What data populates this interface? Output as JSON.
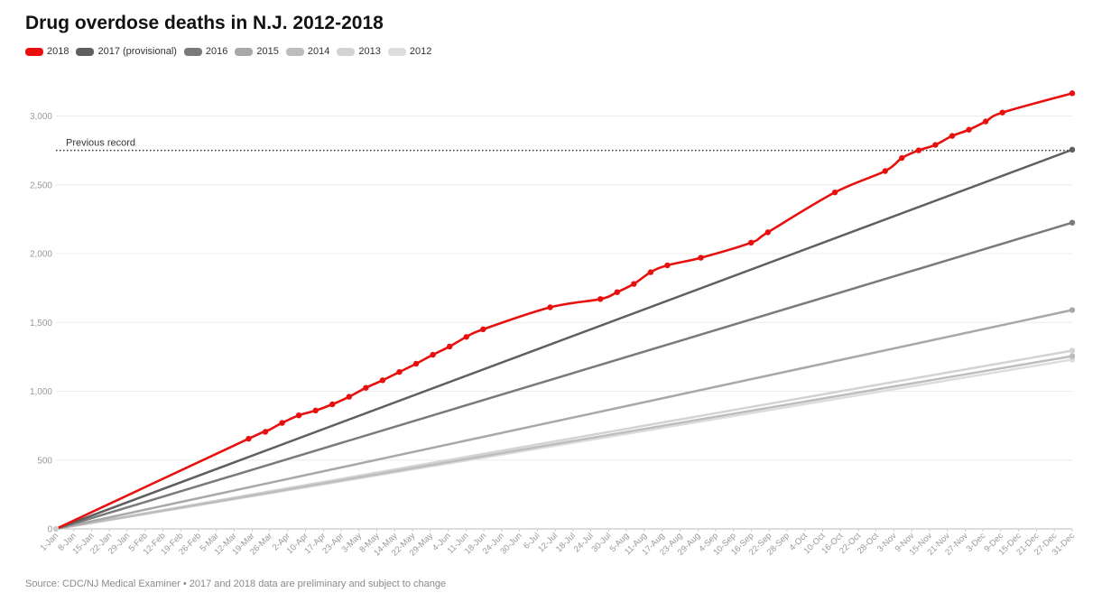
{
  "title": "Drug overdose deaths in N.J. 2012-2018",
  "source": "Source: CDC/NJ Medical Examiner • 2017 and 2018 data are preliminary and subject to change",
  "chart_data": {
    "type": "line",
    "title": "Drug overdose deaths in N.J. 2012-2018",
    "x_ticks": [
      "1-Jan",
      "8-Jan",
      "15-Jan",
      "22-Jan",
      "29-Jan",
      "5-Feb",
      "12-Feb",
      "19-Feb",
      "26-Feb",
      "5-Mar",
      "12-Mar",
      "19-Mar",
      "26-Mar",
      "2-Apr",
      "10-Apr",
      "17-Apr",
      "23-Apr",
      "3-May",
      "8-May",
      "14-May",
      "22-May",
      "29-May",
      "4-Jun",
      "11-Jun",
      "18-Jun",
      "24-Jun",
      "30-Jun",
      "6-Jul",
      "12-Jul",
      "18-Jul",
      "24-Jul",
      "30-Jul",
      "5-Aug",
      "11-Aug",
      "17-Aug",
      "23-Aug",
      "29-Aug",
      "4-Sep",
      "10-Sep",
      "16-Sep",
      "22-Sep",
      "28-Sep",
      "4-Oct",
      "10-Oct",
      "16-Oct",
      "22-Oct",
      "28-Oct",
      "3-Nov",
      "9-Nov",
      "15-Nov",
      "21-Nov",
      "27-Nov",
      "3-Dec",
      "9-Dec",
      "15-Dec",
      "21-Dec",
      "27-Dec",
      "31-Dec"
    ],
    "xlim": [
      1,
      365
    ],
    "ylim": [
      0,
      3200
    ],
    "y_ticks": [
      0,
      500,
      1000,
      1500,
      2000,
      2500,
      3000
    ],
    "y_tick_labels": [
      "0",
      "500",
      "1,000",
      "1,500",
      "2,000",
      "2,500",
      "3,000"
    ],
    "grid": true,
    "legend_position": "top-left",
    "annotation": {
      "label": "Previous record",
      "y": 2750
    },
    "series": [
      {
        "name": "2012",
        "color": "#dddddd",
        "width": 2.5,
        "markers": false,
        "endpoint": true,
        "points": [
          [
            1,
            0
          ],
          [
            365,
            1230
          ]
        ]
      },
      {
        "name": "2013",
        "color": "#d3d3d3",
        "width": 2.5,
        "markers": false,
        "endpoint": true,
        "points": [
          [
            1,
            0
          ],
          [
            365,
            1295
          ]
        ]
      },
      {
        "name": "2014",
        "color": "#bdbdbd",
        "width": 2.5,
        "markers": false,
        "endpoint": true,
        "points": [
          [
            1,
            0
          ],
          [
            365,
            1255
          ]
        ]
      },
      {
        "name": "2015",
        "color": "#a8a8a8",
        "width": 2.5,
        "markers": false,
        "endpoint": true,
        "points": [
          [
            1,
            0
          ],
          [
            365,
            1590
          ]
        ]
      },
      {
        "name": "2016",
        "color": "#7a7a7a",
        "width": 2.5,
        "markers": false,
        "endpoint": true,
        "points": [
          [
            1,
            0
          ],
          [
            365,
            2225
          ]
        ]
      },
      {
        "name": "2017 (provisional)",
        "color": "#5f5f5f",
        "width": 2.5,
        "markers": false,
        "endpoint": true,
        "points": [
          [
            1,
            0
          ],
          [
            365,
            2755
          ]
        ]
      },
      {
        "name": "2018",
        "color": "#e8100e",
        "width": 2.6,
        "markers": true,
        "endpoint": true,
        "points": [
          [
            1,
            0
          ],
          [
            70,
            655
          ],
          [
            76,
            705
          ],
          [
            82,
            770
          ],
          [
            88,
            825
          ],
          [
            94,
            860
          ],
          [
            100,
            905
          ],
          [
            106,
            960
          ],
          [
            112,
            1025
          ],
          [
            118,
            1080
          ],
          [
            124,
            1140
          ],
          [
            130,
            1200
          ],
          [
            136,
            1265
          ],
          [
            142,
            1325
          ],
          [
            148,
            1395
          ],
          [
            154,
            1450
          ],
          [
            178,
            1610
          ],
          [
            196,
            1670
          ],
          [
            202,
            1720
          ],
          [
            208,
            1780
          ],
          [
            214,
            1865
          ],
          [
            220,
            1915
          ],
          [
            232,
            1970
          ],
          [
            250,
            2080
          ],
          [
            256,
            2155
          ],
          [
            280,
            2445
          ],
          [
            298,
            2600
          ],
          [
            304,
            2695
          ],
          [
            310,
            2750
          ],
          [
            316,
            2790
          ],
          [
            322,
            2855
          ],
          [
            328,
            2900
          ],
          [
            334,
            2960
          ],
          [
            340,
            3025
          ],
          [
            365,
            3165
          ]
        ],
        "dotted_indices": [
          1,
          2,
          3,
          4,
          5,
          6,
          7,
          8,
          9,
          10,
          11,
          12,
          13,
          14,
          15,
          16,
          17,
          18,
          19,
          20,
          21,
          22,
          23,
          24,
          25,
          26,
          27,
          28,
          29,
          30,
          31,
          32,
          33,
          34
        ]
      }
    ]
  }
}
